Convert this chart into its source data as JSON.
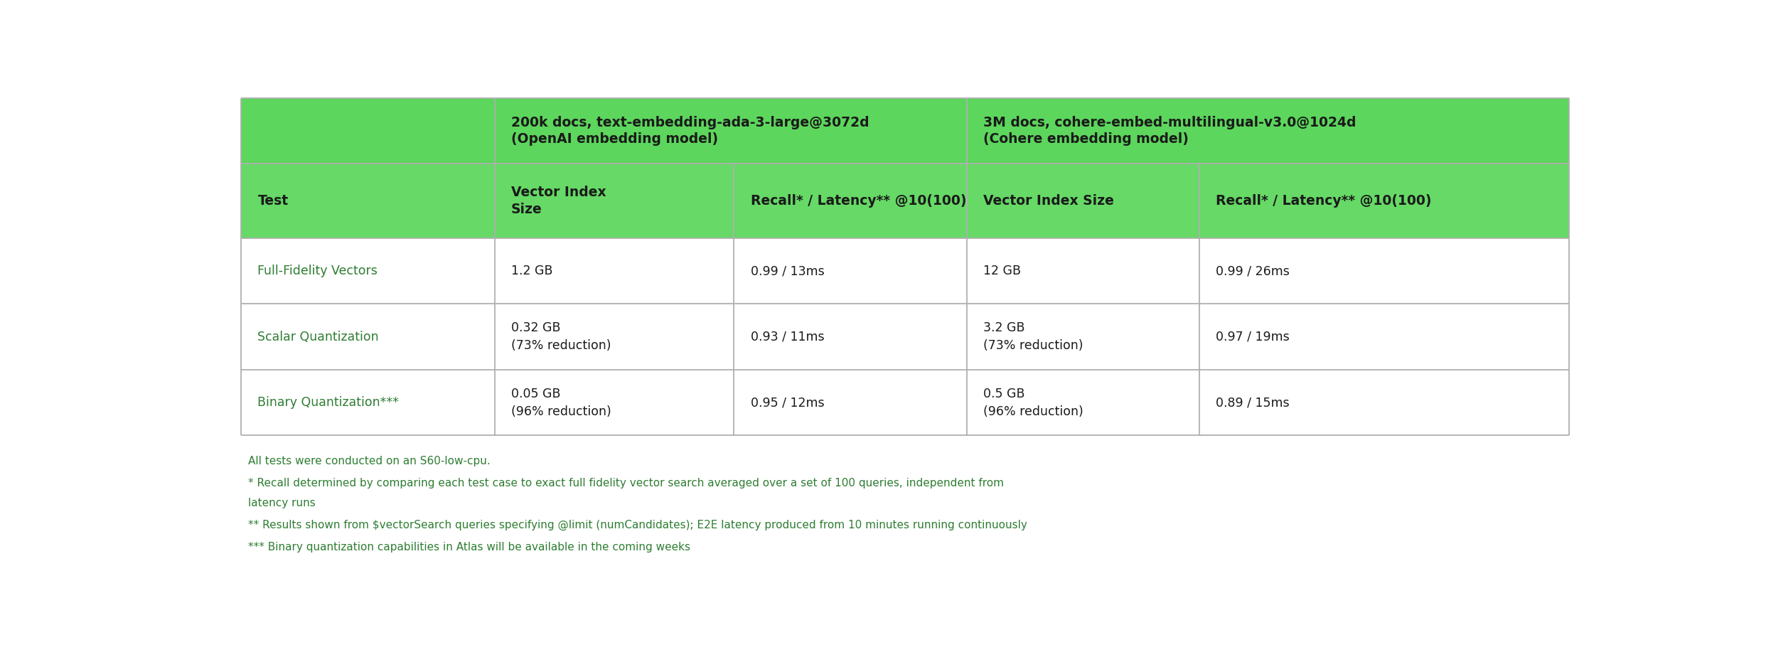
{
  "fig_width": 24.84,
  "fig_height": 9.38,
  "bg_color": "#ffffff",
  "green_header_bg": "#5cd65c",
  "green_subheader_bg": "#66d966",
  "white_row_bg": "#ffffff",
  "border_color": "#b0b0b0",
  "dark_green_text": "#2e7d32",
  "black_text": "#1a1a1a",
  "footnote_color": "#2e7d32",
  "header_row1_lines": [
    [
      "200k docs, text-embedding-ada-3-large@3072d",
      "(OpenAI embedding model)"
    ],
    [
      "3M docs, cohere-embed-multilingual-v3.0@1024d",
      "(Cohere embedding model)"
    ]
  ],
  "header_row2_cells": [
    "Test",
    "Vector Index\nSize",
    "Recall* / Latency** @10(100)",
    "Vector Index Size",
    "Recall* / Latency** @10(100)"
  ],
  "rows": [
    {
      "col0": "Full-Fidelity Vectors",
      "col1": "1.2 GB",
      "col1b": "",
      "col2": "0.99 / 13ms",
      "col3": "12 GB",
      "col3b": "",
      "col4": "0.99 / 26ms"
    },
    {
      "col0": "Scalar Quantization",
      "col1": "0.32 GB",
      "col1b": "(73% reduction)",
      "col2": "0.93 / 11ms",
      "col3": "3.2 GB",
      "col3b": "(73% reduction)",
      "col4": "0.97 / 19ms"
    },
    {
      "col0": "Binary Quantization***",
      "col1": "0.05 GB",
      "col1b": "(96% reduction)",
      "col2": "0.95 / 12ms",
      "col3": "0.5 GB",
      "col3b": "(96% reduction)",
      "col4": "0.89 / 15ms"
    }
  ],
  "footnotes": [
    "All tests were conducted on an S60-low-cpu.",
    "* Recall determined by comparing each test case to exact full fidelity vector search averaged over a set of 100 queries, independent from\nlatency runs",
    "** Results shown from $vectorSearch queries specifying @limit (numCandidates); E2E latency produced from 10 minutes running continuously",
    "*** Binary quantization capabilities in Atlas will be available in the coming weeks"
  ],
  "col_bounds": [
    0.015,
    0.2,
    0.375,
    0.545,
    0.715,
    0.985
  ]
}
